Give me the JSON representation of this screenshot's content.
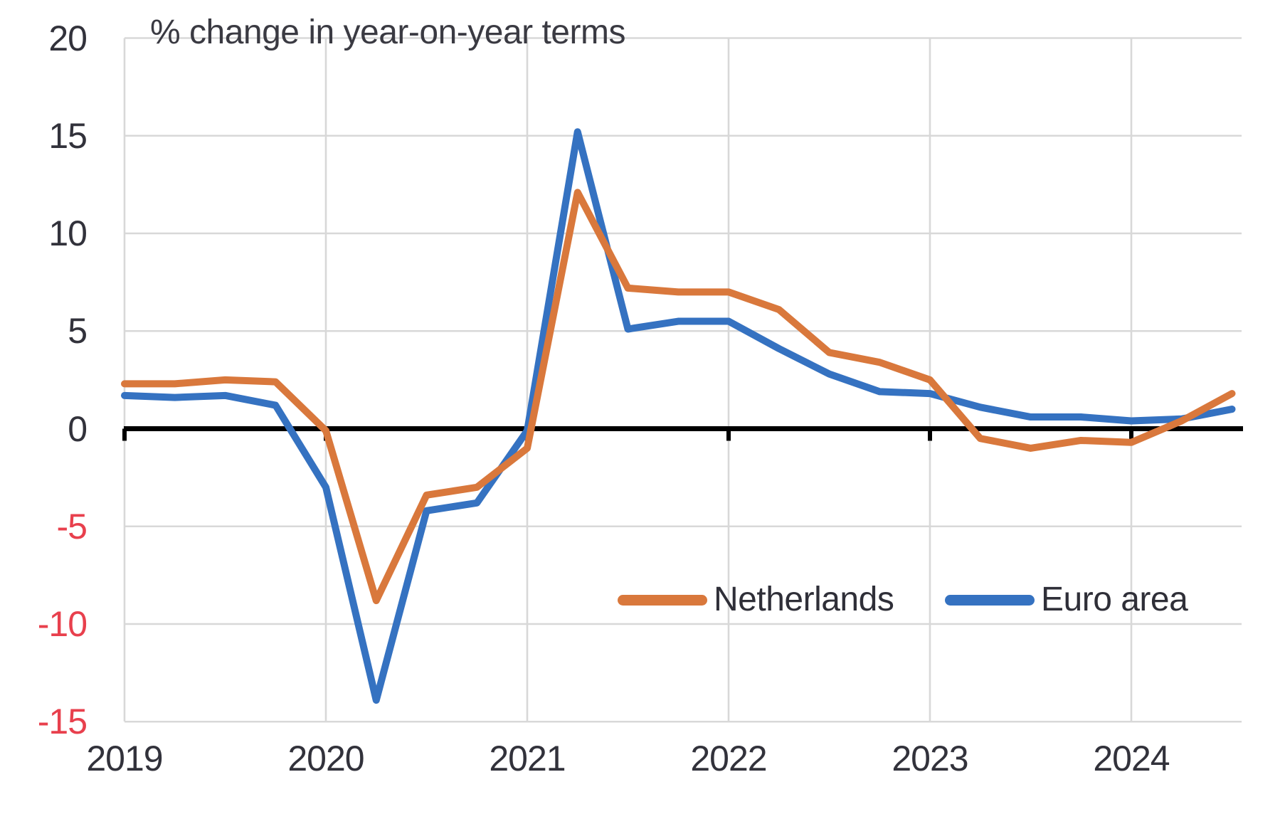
{
  "title": "% change in year-on-year terms",
  "colors": {
    "netherlands": "#d9783c",
    "euro_area": "#3572c1",
    "negative_tick_label": "#e8404d",
    "tick_label": "#32323b",
    "gridline": "#d8d8d8",
    "zero_axis": "#000000"
  },
  "legend": {
    "items": [
      {
        "label": "Netherlands",
        "color": "#d9783c"
      },
      {
        "label": "Euro area",
        "color": "#3572c1"
      }
    ]
  },
  "axes": {
    "y": {
      "ticks": [
        {
          "value": 20,
          "label": "20"
        },
        {
          "value": 15,
          "label": "15"
        },
        {
          "value": 10,
          "label": "10"
        },
        {
          "value": 5,
          "label": "5"
        },
        {
          "value": 0,
          "label": "0"
        },
        {
          "value": -5,
          "label": "-5"
        },
        {
          "value": -10,
          "label": "-10"
        },
        {
          "value": -15,
          "label": "-15"
        }
      ]
    },
    "x": {
      "ticks": [
        {
          "value": 2019,
          "label": "2019"
        },
        {
          "value": 2020,
          "label": "2020"
        },
        {
          "value": 2021,
          "label": "2021"
        },
        {
          "value": 2022,
          "label": "2022"
        },
        {
          "value": 2023,
          "label": "2023"
        },
        {
          "value": 2024,
          "label": "2024"
        }
      ]
    }
  },
  "chart_data": {
    "type": "line",
    "title": "% change in year-on-year terms",
    "xlabel": "",
    "ylabel": "% change in year-on-year terms",
    "ylim": [
      -15,
      20
    ],
    "grid": true,
    "legend_position": "inside-bottom",
    "x_unit": "quarterly",
    "x": [
      "2019Q1",
      "2019Q2",
      "2019Q3",
      "2019Q4",
      "2020Q1",
      "2020Q2",
      "2020Q3",
      "2020Q4",
      "2021Q1",
      "2021Q2",
      "2021Q3",
      "2021Q4",
      "2022Q1",
      "2022Q2",
      "2022Q3",
      "2022Q4",
      "2023Q1",
      "2023Q2",
      "2023Q3",
      "2023Q4",
      "2024Q1",
      "2024Q2",
      "2024Q3"
    ],
    "series": [
      {
        "name": "Netherlands",
        "color": "#d9783c",
        "values": [
          2.3,
          2.3,
          2.5,
          2.4,
          -0.1,
          -8.8,
          -3.4,
          -3.0,
          -1.0,
          12.1,
          7.2,
          7.0,
          7.0,
          6.1,
          3.9,
          3.4,
          2.5,
          -0.5,
          -1.0,
          -0.6,
          -0.7,
          0.4,
          1.8
        ]
      },
      {
        "name": "Euro area",
        "color": "#3572c1",
        "values": [
          1.7,
          1.6,
          1.7,
          1.2,
          -3.0,
          -13.9,
          -4.2,
          -3.8,
          -0.1,
          15.2,
          5.1,
          5.5,
          5.5,
          4.1,
          2.8,
          1.9,
          1.8,
          1.1,
          0.6,
          0.6,
          0.4,
          0.5,
          1.0
        ]
      }
    ]
  }
}
